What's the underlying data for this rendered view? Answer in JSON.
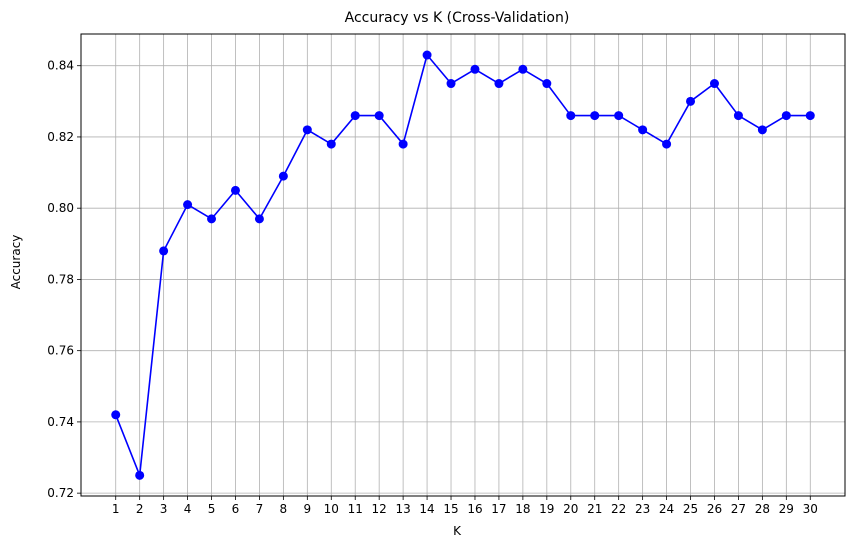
{
  "chart_data": {
    "type": "line",
    "title": "Accuracy vs K (Cross-Validation)",
    "xlabel": "K",
    "ylabel": "Accuracy",
    "x": [
      1,
      2,
      3,
      4,
      5,
      6,
      7,
      8,
      9,
      10,
      11,
      12,
      13,
      14,
      15,
      16,
      17,
      18,
      19,
      20,
      21,
      22,
      23,
      24,
      25,
      26,
      27,
      28,
      29,
      30
    ],
    "series": [
      {
        "color": "#0000ff",
        "marker": "circle",
        "values": [
          0.742,
          0.725,
          0.788,
          0.801,
          0.797,
          0.805,
          0.797,
          0.809,
          0.822,
          0.818,
          0.826,
          0.826,
          0.818,
          0.843,
          0.835,
          0.839,
          0.835,
          0.839,
          0.835,
          0.826,
          0.826,
          0.826,
          0.822,
          0.818,
          0.83,
          0.835,
          0.826,
          0.822,
          0.826,
          0.826
        ]
      }
    ],
    "xticks": [
      "1",
      "2",
      "3",
      "4",
      "5",
      "6",
      "7",
      "8",
      "9",
      "10",
      "11",
      "12",
      "13",
      "14",
      "15",
      "16",
      "17",
      "18",
      "19",
      "20",
      "21",
      "22",
      "23",
      "24",
      "25",
      "26",
      "27",
      "28",
      "29",
      "30"
    ],
    "yticks": [
      "0.72",
      "0.74",
      "0.76",
      "0.78",
      "0.80",
      "0.82",
      "0.84"
    ],
    "xlim": [
      -0.45,
      31.45
    ],
    "ylim": [
      0.7192,
      0.8489
    ],
    "grid": true
  }
}
